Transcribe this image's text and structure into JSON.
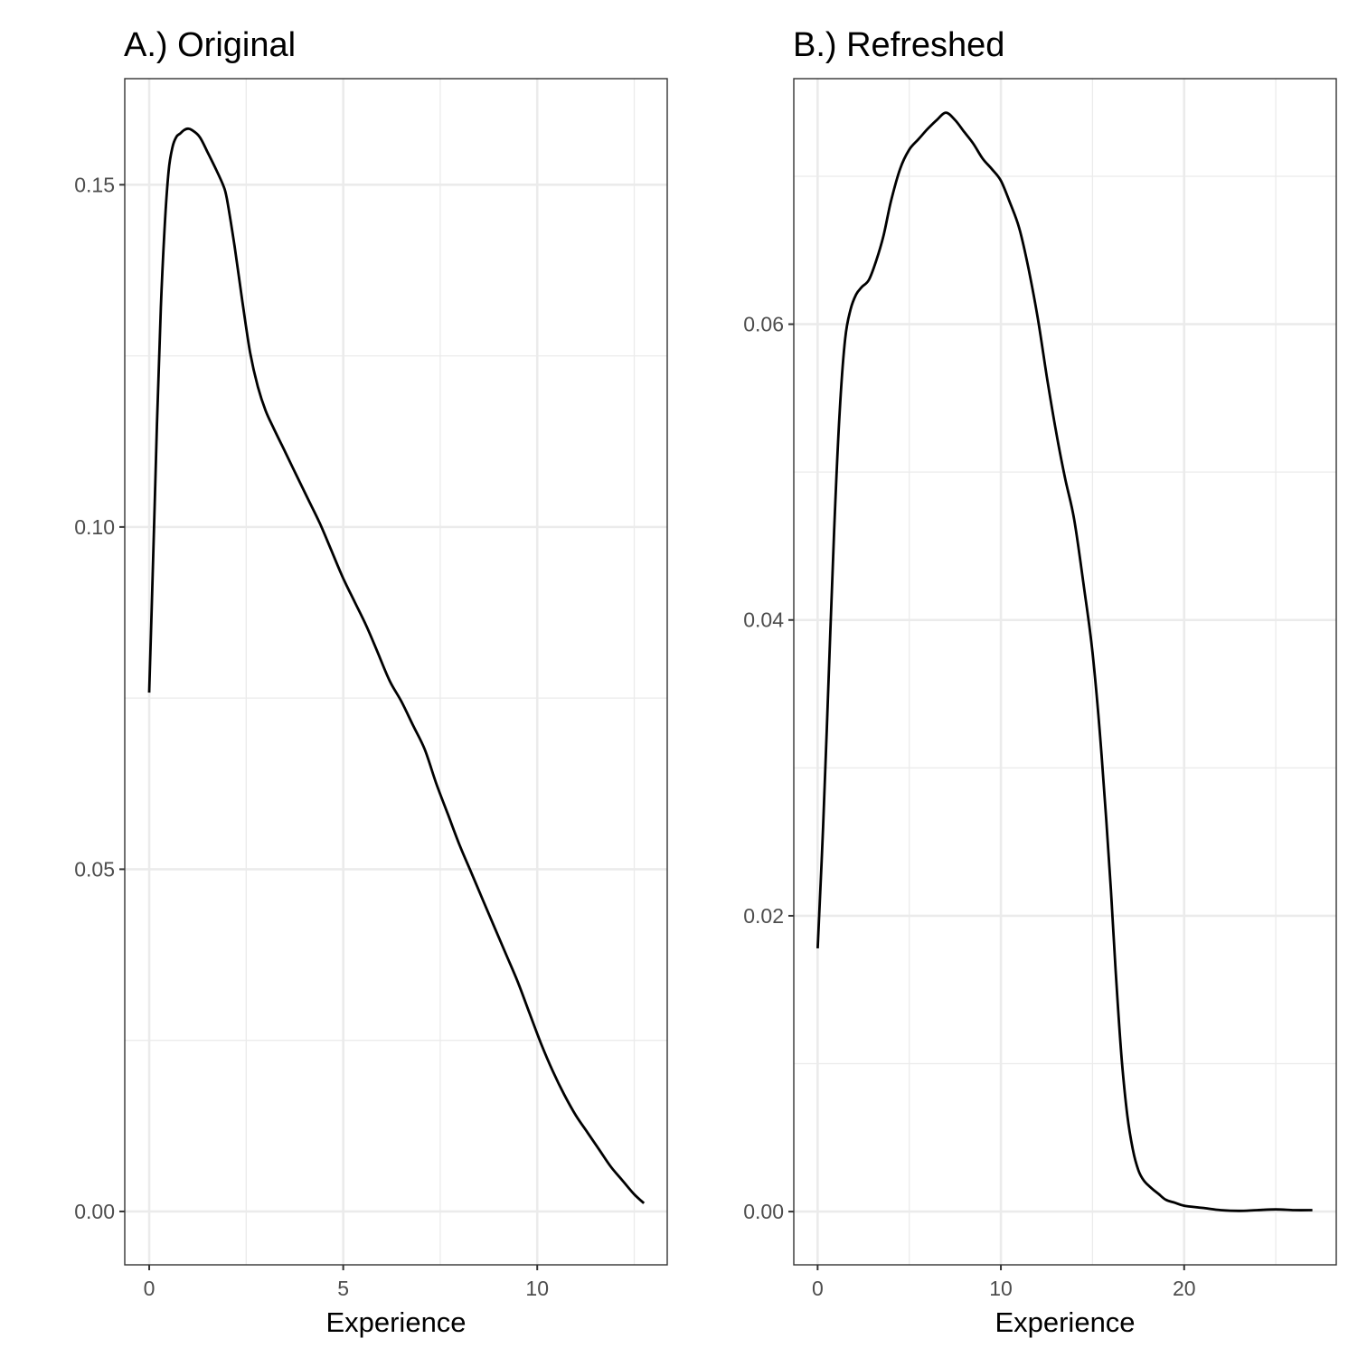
{
  "chart_data": [
    {
      "type": "line",
      "title": "A.) Original",
      "xlabel": "Experience",
      "ylabel": "",
      "xlim": [
        -0.63,
        13.35
      ],
      "ylim": [
        -0.0078,
        0.1655
      ],
      "xticks": [
        0,
        5,
        10
      ],
      "xtick_labels": [
        "0",
        "5",
        "10"
      ],
      "xminor": [
        2.5,
        7.5,
        12.5
      ],
      "yticks": [
        0.0,
        0.05,
        0.1,
        0.15
      ],
      "ytick_labels": [
        "0.00",
        "0.05",
        "0.10",
        "0.15"
      ],
      "yminor": [
        0.025,
        0.075,
        0.125
      ],
      "grid": true,
      "legend": "none",
      "series": [
        {
          "x": [
            0,
            0.1,
            0.2,
            0.3,
            0.4,
            0.5,
            0.6,
            0.7,
            0.8,
            0.9,
            1.0,
            1.1,
            1.3,
            1.5,
            1.7,
            1.9,
            2.0,
            2.2,
            2.4,
            2.6,
            2.8,
            3.0,
            3.2,
            3.5,
            3.8,
            4.1,
            4.4,
            4.7,
            5.0,
            5.3,
            5.6,
            5.9,
            6.2,
            6.5,
            6.8,
            7.1,
            7.4,
            7.7,
            8.0,
            8.3,
            8.6,
            8.9,
            9.2,
            9.5,
            9.8,
            10.1,
            10.4,
            10.7,
            11.0,
            11.3,
            11.6,
            11.9,
            12.2,
            12.5,
            12.75
          ],
          "y": [
            0.0758,
            0.095,
            0.115,
            0.132,
            0.144,
            0.152,
            0.1555,
            0.157,
            0.1575,
            0.158,
            0.1582,
            0.158,
            0.157,
            0.1548,
            0.1525,
            0.15,
            0.148,
            0.141,
            0.133,
            0.1255,
            0.1205,
            0.117,
            0.1145,
            0.111,
            0.1075,
            0.104,
            0.1005,
            0.0965,
            0.0925,
            0.089,
            0.0855,
            0.0815,
            0.0775,
            0.0745,
            0.071,
            0.0675,
            0.0625,
            0.058,
            0.0535,
            0.0495,
            0.0455,
            0.0415,
            0.0375,
            0.0335,
            0.029,
            0.0245,
            0.0205,
            0.017,
            0.014,
            0.0115,
            0.009,
            0.0065,
            0.0045,
            0.0025,
            0.0012
          ]
        }
      ]
    },
    {
      "type": "line",
      "title": "B.) Refreshed",
      "xlabel": "Experience",
      "ylabel": "",
      "xlim": [
        -1.3,
        28.3
      ],
      "ylim": [
        -0.0036,
        0.0766
      ],
      "xticks": [
        0,
        10,
        20
      ],
      "xtick_labels": [
        "0",
        "10",
        "20"
      ],
      "xminor": [
        5,
        15,
        25
      ],
      "yticks": [
        0.0,
        0.02,
        0.04,
        0.06
      ],
      "ytick_labels": [
        "0.00",
        "0.02",
        "0.04",
        "0.06"
      ],
      "yminor": [
        0.01,
        0.03,
        0.05,
        0.07
      ],
      "grid": true,
      "legend": "none",
      "series": [
        {
          "x": [
            0,
            0.3,
            0.6,
            0.9,
            1.2,
            1.5,
            1.8,
            2.1,
            2.4,
            2.8,
            3.2,
            3.6,
            4.0,
            4.5,
            5.0,
            5.5,
            6.0,
            6.5,
            7.0,
            7.5,
            8.0,
            8.5,
            9.0,
            9.5,
            10.0,
            10.5,
            11.0,
            11.5,
            12.0,
            12.5,
            13.0,
            13.5,
            14.0,
            14.5,
            15.0,
            15.5,
            16.0,
            16.3,
            16.6,
            16.9,
            17.2,
            17.5,
            17.8,
            18.2,
            18.6,
            19.0,
            19.5,
            20.0,
            21.0,
            22.0,
            23.0,
            24.0,
            25.0,
            26.0,
            27.0
          ],
          "y": [
            0.0178,
            0.026,
            0.036,
            0.046,
            0.054,
            0.059,
            0.061,
            0.062,
            0.0625,
            0.063,
            0.0643,
            0.066,
            0.0683,
            0.0705,
            0.0718,
            0.0725,
            0.0732,
            0.0738,
            0.0743,
            0.0738,
            0.073,
            0.0722,
            0.0712,
            0.0705,
            0.0697,
            0.0682,
            0.0665,
            0.0638,
            0.0605,
            0.0565,
            0.0528,
            0.0496,
            0.0468,
            0.0425,
            0.0378,
            0.0308,
            0.0218,
            0.0155,
            0.0102,
            0.0065,
            0.0042,
            0.0028,
            0.0021,
            0.0016,
            0.0012,
            0.0008,
            0.0006,
            0.0004,
            0.00025,
            0.0001,
            5e-05,
            0.0001,
            0.00015,
            0.0001,
            0.0001
          ]
        }
      ]
    }
  ]
}
